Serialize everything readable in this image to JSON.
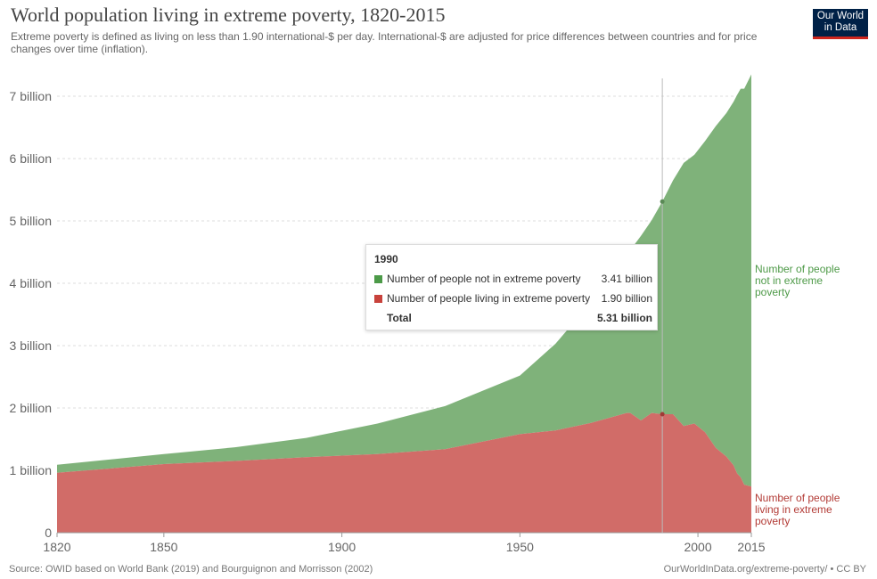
{
  "title": "World population living in extreme poverty, 1820-2015",
  "subtitle": "Extreme poverty is defined as living on less than 1.90 international-$ per day. International-$ are adjusted for price differences between countries and for price changes over time (inflation).",
  "logo": {
    "line1": "Our World",
    "line2": "in Data"
  },
  "footer": {
    "source": "Source: OWID based on World Bank (2019) and Bourguignon and Morrisson (2002)",
    "license": "OurWorldInData.org/extreme-poverty/ • CC BY"
  },
  "colors": {
    "not_poor": "#7fb27a",
    "poor": "#d16c68",
    "not_poor_text": "#4e9a48",
    "poor_text": "#b33b36"
  },
  "chart_data": {
    "type": "area",
    "stacked": true,
    "title": "World population living in extreme poverty, 1820-2015",
    "xlim": [
      1820,
      2015
    ],
    "ylim": [
      0,
      7.3
    ],
    "x_ticks": [
      1820,
      1850,
      1900,
      1950,
      2000,
      2015
    ],
    "y_ticks": [
      {
        "value": 0,
        "label": "0"
      },
      {
        "value": 1,
        "label": "1 billion"
      },
      {
        "value": 2,
        "label": "2 billion"
      },
      {
        "value": 3,
        "label": "3 billion"
      },
      {
        "value": 4,
        "label": "4 billion"
      },
      {
        "value": 5,
        "label": "5 billion"
      },
      {
        "value": 6,
        "label": "6 billion"
      },
      {
        "value": 7,
        "label": "7 billion"
      }
    ],
    "x": [
      1820,
      1850,
      1870,
      1890,
      1910,
      1929,
      1950,
      1960,
      1970,
      1980,
      1981,
      1984,
      1987,
      1990,
      1993,
      1996,
      1999,
      2002,
      2005,
      2008,
      2010,
      2011,
      2012,
      2013,
      2015
    ],
    "series": [
      {
        "name": "Number of people living in extreme poverty",
        "label": [
          "Number of people",
          "living in extreme",
          "poverty"
        ],
        "values": [
          0.96,
          1.1,
          1.15,
          1.21,
          1.26,
          1.34,
          1.58,
          1.64,
          1.76,
          1.92,
          1.92,
          1.8,
          1.92,
          1.9,
          1.9,
          1.71,
          1.75,
          1.61,
          1.36,
          1.22,
          1.08,
          0.95,
          0.89,
          0.77,
          0.74
        ]
      },
      {
        "name": "Number of people not in extreme poverty",
        "label": [
          "Number of people",
          "not in extreme",
          "poverty"
        ],
        "values": [
          0.13,
          0.16,
          0.22,
          0.31,
          0.49,
          0.69,
          0.94,
          1.39,
          1.94,
          2.51,
          2.61,
          2.96,
          3.09,
          3.41,
          3.75,
          4.22,
          4.31,
          4.67,
          5.16,
          5.51,
          5.83,
          6.07,
          6.23,
          6.35,
          6.61
        ]
      }
    ],
    "tooltip": {
      "year": "1990",
      "rows": [
        {
          "label": "Number of people not in extreme poverty",
          "value": "3.41 billion"
        },
        {
          "label": "Number of people living in extreme poverty",
          "value": "1.90 billion"
        }
      ],
      "total_label": "Total",
      "total_value": "5.31 billion"
    }
  }
}
